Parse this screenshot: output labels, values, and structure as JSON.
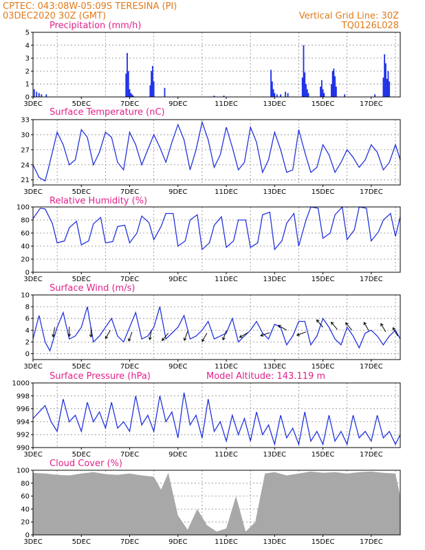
{
  "header": {
    "line1_left": "CPTEC:   043:08W-05:09S   TERESINA (PI)",
    "line2_left": "03DEC2020 30Z (GMT)",
    "line1_right": "Vertical Grid Line: 30Z",
    "line2_right": "TQ0126L028"
  },
  "colors": {
    "line": "#2233dd",
    "bar": "#1a2ee8",
    "cloud": "#a8a8a8",
    "title": "#e0218a",
    "header": "#e07a1a"
  },
  "x_labels": [
    "3DEC",
    "5DEC",
    "7DEC",
    "9DEC",
    "11DEC",
    "13DEC",
    "15DEC",
    "17DEC"
  ],
  "chart_data": [
    {
      "type": "bar",
      "title": "Precipitation (mm/h)",
      "ylim": [
        0,
        5
      ],
      "yticks": [
        0,
        1,
        2,
        3,
        4,
        5
      ],
      "x_range_days": [
        0,
        15.2
      ],
      "x": [
        0.05,
        0.15,
        0.25,
        0.35,
        0.55,
        3.85,
        3.9,
        3.95,
        4.0,
        4.05,
        4.1,
        4.15,
        4.85,
        4.9,
        4.95,
        5.0,
        5.45,
        7.5,
        7.9,
        9.85,
        9.9,
        9.95,
        10.0,
        10.1,
        10.25,
        10.45,
        10.55,
        11.15,
        11.2,
        11.25,
        11.3,
        11.35,
        11.4,
        11.9,
        11.95,
        12.0,
        12.05,
        12.35,
        12.4,
        12.45,
        12.5,
        12.55,
        12.9,
        14.15,
        14.5,
        14.55,
        14.6,
        14.65,
        14.7,
        14.75
      ],
      "values": [
        0.6,
        0.4,
        0.3,
        0.2,
        0.2,
        1.8,
        3.4,
        2.0,
        0.6,
        0.3,
        0.2,
        0.1,
        0.9,
        2.0,
        2.4,
        1.2,
        0.7,
        0.1,
        0.1,
        2.1,
        1.2,
        0.6,
        0.3,
        0.2,
        0.2,
        0.4,
        0.3,
        1.5,
        4.0,
        1.9,
        1.0,
        0.6,
        0.3,
        0.8,
        1.3,
        0.6,
        0.3,
        1.0,
        2.0,
        2.2,
        1.6,
        0.8,
        0.2,
        0.2,
        1.5,
        3.3,
        2.6,
        1.4,
        2.0,
        1.2
      ]
    },
    {
      "type": "line",
      "title": "Surface Temperature (nC)",
      "ylim": [
        20,
        33
      ],
      "yticks": [
        21,
        24,
        27,
        30,
        33
      ],
      "x": [
        0.0,
        0.25,
        0.5,
        0.65,
        1.0,
        1.25,
        1.5,
        1.75,
        2.0,
        2.25,
        2.5,
        2.75,
        3.0,
        3.25,
        3.5,
        3.75,
        4.0,
        4.25,
        4.5,
        4.75,
        5.0,
        5.25,
        5.5,
        5.75,
        6.0,
        6.25,
        6.5,
        6.75,
        7.0,
        7.25,
        7.5,
        7.75,
        8.0,
        8.25,
        8.5,
        8.75,
        9.0,
        9.25,
        9.5,
        9.75,
        10.0,
        10.25,
        10.5,
        10.75,
        11.0,
        11.25,
        11.5,
        11.75,
        12.0,
        12.25,
        12.5,
        12.75,
        13.0,
        13.25,
        13.5,
        13.75,
        14.0,
        14.25,
        14.5,
        14.75,
        15.0,
        15.2
      ],
      "values": [
        24.0,
        21.5,
        20.8,
        23.5,
        30.5,
        28.0,
        24.0,
        25.0,
        31.0,
        29.5,
        24.0,
        26.5,
        30.5,
        29.5,
        24.5,
        23.0,
        30.5,
        28.0,
        24.0,
        27.0,
        30.0,
        27.5,
        24.5,
        28.5,
        32.0,
        29.0,
        23.0,
        27.0,
        32.5,
        29.0,
        23.5,
        26.0,
        31.5,
        27.5,
        23.0,
        24.5,
        31.5,
        28.5,
        22.5,
        25.0,
        30.5,
        27.0,
        22.5,
        23.0,
        31.0,
        26.5,
        22.5,
        23.5,
        28.0,
        26.0,
        22.5,
        24.5,
        27.0,
        25.5,
        23.5,
        25.0,
        28.0,
        26.5,
        23.0,
        24.5,
        28.0,
        25.0
      ]
    },
    {
      "type": "line",
      "title": "Relative Humidity (%)",
      "ylim": [
        0,
        100
      ],
      "yticks": [
        0,
        20,
        40,
        60,
        80,
        100
      ],
      "x": [
        0.0,
        0.3,
        0.5,
        0.8,
        1.0,
        1.3,
        1.5,
        1.8,
        2.0,
        2.3,
        2.5,
        2.8,
        3.0,
        3.3,
        3.5,
        3.8,
        4.0,
        4.3,
        4.5,
        4.8,
        5.0,
        5.3,
        5.5,
        5.8,
        6.0,
        6.3,
        6.5,
        6.8,
        7.0,
        7.3,
        7.5,
        7.8,
        8.0,
        8.3,
        8.5,
        8.8,
        9.0,
        9.3,
        9.5,
        9.8,
        10.0,
        10.3,
        10.5,
        10.8,
        11.0,
        11.3,
        11.5,
        11.8,
        12.0,
        12.3,
        12.5,
        12.8,
        13.0,
        13.3,
        13.5,
        13.8,
        14.0,
        14.3,
        14.5,
        14.8,
        15.0,
        15.2
      ],
      "values": [
        82,
        98,
        97,
        75,
        45,
        48,
        68,
        78,
        42,
        48,
        74,
        84,
        45,
        47,
        70,
        72,
        45,
        60,
        86,
        76,
        50,
        70,
        90,
        90,
        40,
        48,
        80,
        88,
        35,
        45,
        72,
        85,
        38,
        48,
        80,
        80,
        38,
        45,
        88,
        92,
        35,
        48,
        75,
        90,
        40,
        80,
        100,
        98,
        52,
        60,
        88,
        100,
        50,
        65,
        100,
        98,
        48,
        62,
        80,
        90,
        55,
        85
      ]
    },
    {
      "type": "line",
      "title": "Surface Wind (m/s)",
      "ylim": [
        -1,
        10
      ],
      "yticks": [
        0,
        2,
        4,
        6,
        8,
        10
      ],
      "x": [
        0.0,
        0.25,
        0.5,
        0.7,
        1.0,
        1.25,
        1.5,
        1.75,
        2.0,
        2.25,
        2.5,
        2.75,
        3.0,
        3.25,
        3.5,
        3.75,
        4.0,
        4.25,
        4.5,
        4.75,
        5.0,
        5.25,
        5.5,
        5.75,
        6.0,
        6.25,
        6.5,
        6.75,
        7.0,
        7.25,
        7.5,
        7.75,
        8.0,
        8.25,
        8.5,
        8.75,
        9.0,
        9.25,
        9.5,
        9.75,
        10.0,
        10.25,
        10.5,
        10.75,
        11.0,
        11.25,
        11.5,
        11.75,
        12.0,
        12.25,
        12.5,
        12.75,
        13.0,
        13.25,
        13.5,
        13.75,
        14.0,
        14.25,
        14.5,
        14.75,
        15.0,
        15.2
      ],
      "values": [
        2.5,
        6.5,
        2.0,
        0.5,
        4.5,
        7.0,
        2.5,
        3.0,
        4.5,
        8.0,
        2.0,
        3.0,
        4.5,
        6.0,
        3.0,
        2.0,
        4.5,
        7.0,
        2.5,
        3.0,
        4.5,
        8.0,
        2.5,
        3.5,
        4.5,
        6.5,
        2.5,
        3.0,
        4.0,
        5.5,
        2.5,
        3.0,
        3.5,
        6.0,
        2.0,
        3.0,
        4.0,
        5.5,
        3.5,
        2.5,
        5.0,
        4.5,
        1.5,
        3.0,
        5.5,
        5.5,
        1.5,
        3.0,
        6.0,
        4.5,
        2.5,
        1.5,
        4.5,
        3.0,
        1.0,
        3.5,
        4.0,
        3.0,
        1.5,
        3.0,
        4.0,
        2.5
      ],
      "wind_barbs": [
        {
          "x": 0.9,
          "y": 4.5,
          "dir": 190
        },
        {
          "x": 1.5,
          "y": 4.6,
          "dir": 180
        },
        {
          "x": 2.4,
          "y": 4.5,
          "dir": 180
        },
        {
          "x": 3.2,
          "y": 4.0,
          "dir": 210
        },
        {
          "x": 4.1,
          "y": 3.7,
          "dir": 200
        },
        {
          "x": 4.9,
          "y": 4.0,
          "dir": 190
        },
        {
          "x": 5.6,
          "y": 3.5,
          "dir": 220
        },
        {
          "x": 6.4,
          "y": 3.8,
          "dir": 200
        },
        {
          "x": 7.2,
          "y": 3.5,
          "dir": 210
        },
        {
          "x": 8.0,
          "y": 3.9,
          "dir": 200
        },
        {
          "x": 8.9,
          "y": 3.6,
          "dir": 240
        },
        {
          "x": 9.8,
          "y": 3.6,
          "dir": 250
        },
        {
          "x": 10.5,
          "y": 4.0,
          "dir": 300
        },
        {
          "x": 11.3,
          "y": 3.7,
          "dir": 250
        },
        {
          "x": 12.0,
          "y": 4.5,
          "dir": 320
        },
        {
          "x": 12.6,
          "y": 4.1,
          "dir": 320
        },
        {
          "x": 13.2,
          "y": 4.0,
          "dir": 320
        },
        {
          "x": 13.9,
          "y": 3.9,
          "dir": 330
        },
        {
          "x": 14.6,
          "y": 3.7,
          "dir": 330
        },
        {
          "x": 15.1,
          "y": 3.0,
          "dir": 330
        }
      ]
    },
    {
      "type": "line",
      "title": "Surface Pressure (hPa)",
      "annotation": "Model Altitude: 143.119  m",
      "ylim": [
        990,
        1000
      ],
      "yticks": [
        990,
        992,
        994,
        996,
        998,
        1000
      ],
      "x": [
        0.0,
        0.25,
        0.5,
        0.75,
        1.0,
        1.25,
        1.5,
        1.75,
        2.0,
        2.25,
        2.5,
        2.75,
        3.0,
        3.25,
        3.5,
        3.75,
        4.0,
        4.25,
        4.5,
        4.75,
        5.0,
        5.25,
        5.5,
        5.75,
        6.0,
        6.25,
        6.5,
        6.75,
        7.0,
        7.25,
        7.5,
        7.75,
        8.0,
        8.25,
        8.5,
        8.75,
        9.0,
        9.25,
        9.5,
        9.75,
        10.0,
        10.25,
        10.5,
        10.75,
        11.0,
        11.25,
        11.5,
        11.75,
        12.0,
        12.25,
        12.5,
        12.75,
        13.0,
        13.25,
        13.5,
        13.75,
        14.0,
        14.25,
        14.5,
        14.75,
        15.0,
        15.2
      ],
      "values": [
        994.5,
        995.5,
        996.5,
        994.0,
        992.5,
        997.5,
        994.0,
        995.0,
        992.5,
        997.0,
        994.0,
        995.5,
        993.0,
        997.0,
        993.0,
        994.0,
        992.5,
        998.0,
        993.5,
        995.0,
        992.5,
        998.0,
        994.0,
        995.5,
        991.5,
        998.5,
        993.5,
        995.0,
        991.5,
        997.5,
        992.5,
        994.0,
        991.0,
        995.0,
        992.0,
        994.5,
        991.0,
        995.5,
        992.0,
        993.5,
        990.5,
        995.0,
        991.5,
        993.0,
        990.5,
        995.5,
        991.0,
        992.5,
        990.5,
        995.0,
        991.0,
        992.5,
        990.5,
        995.0,
        991.5,
        992.5,
        991.0,
        995.0,
        991.5,
        992.5,
        990.5,
        992.0
      ]
    },
    {
      "type": "area",
      "title": "Cloud Cover (%)",
      "ylim": [
        0,
        100
      ],
      "yticks": [
        0,
        20,
        40,
        60,
        80,
        100
      ],
      "x": [
        0.0,
        0.5,
        1.0,
        1.5,
        2.0,
        2.5,
        3.0,
        3.5,
        4.0,
        4.5,
        5.0,
        5.3,
        5.6,
        6.0,
        6.4,
        6.8,
        7.2,
        7.6,
        8.0,
        8.4,
        8.8,
        9.2,
        9.6,
        10.0,
        10.5,
        11.0,
        11.5,
        12.0,
        12.5,
        13.0,
        13.5,
        14.0,
        14.5,
        15.0,
        15.2
      ],
      "values": [
        96,
        95,
        93,
        92,
        95,
        97,
        94,
        93,
        95,
        92,
        90,
        70,
        96,
        30,
        8,
        40,
        15,
        5,
        10,
        60,
        5,
        20,
        95,
        97,
        92,
        95,
        98,
        96,
        97,
        95,
        97,
        98,
        96,
        95,
        60
      ]
    }
  ]
}
